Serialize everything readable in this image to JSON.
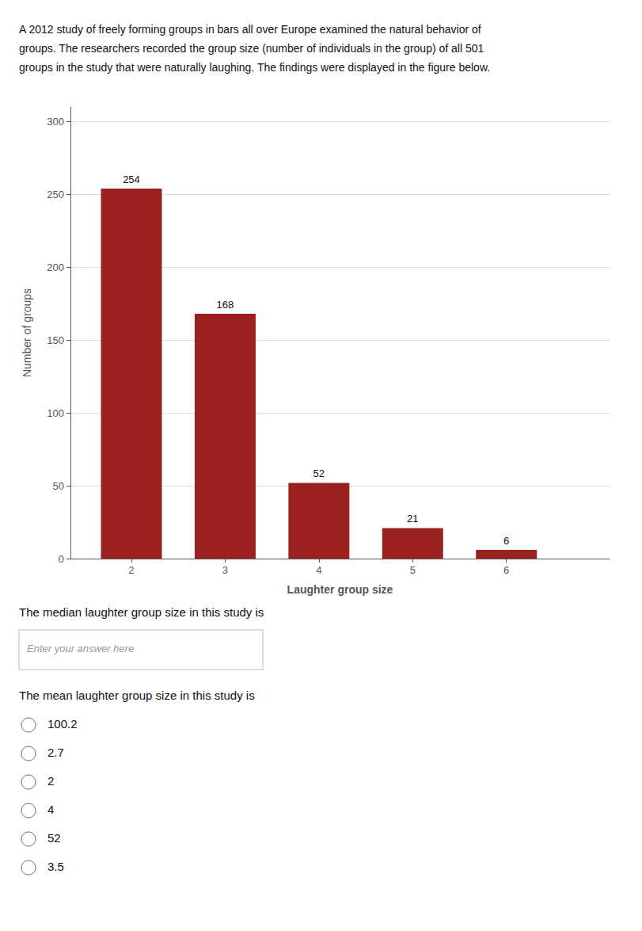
{
  "chart_data": {
    "type": "bar",
    "x": [
      2,
      3,
      4,
      5,
      6
    ],
    "values": [
      254,
      168,
      52,
      21,
      6
    ],
    "color": "#9b2020",
    "xlabel": "Laughter group size",
    "ylabel": "Number of groups",
    "xlim": [
      1.35,
      7.1
    ],
    "xticks": [
      2,
      3,
      4,
      5,
      6
    ],
    "ylim": [
      0,
      310
    ],
    "yticks": [
      0,
      50,
      100,
      150,
      200,
      250,
      300
    ],
    "grid": true,
    "data_labels": true,
    "annotations": [
      "A 2012 study of freely forming groups in bars all over Europe examined the natural behavior of",
      "groups. The researchers recorded the group size (number of individuals in the group) of all 501",
      "groups in the study that were naturally laughing. The findings were displayed in the figure below.",
      "The median laughter group size in this study is",
      "Enter your answer here",
      "The mean laughter group size in this study is",
      "100.2",
      "2.7",
      "2",
      "4",
      "52",
      "3.5"
    ]
  }
}
